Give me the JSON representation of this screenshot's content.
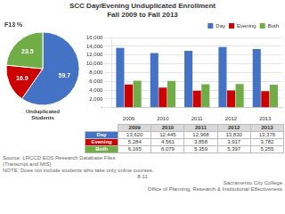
{
  "chart_data": [
    {
      "type": "bar",
      "title": "SCC Day/Evening Unduplicated Enrollment\nFall 2009 to Fall 2013",
      "categories": [
        "2009",
        "2010",
        "2011",
        "2012",
        "2013"
      ],
      "series": [
        {
          "name": "Day",
          "color": "#4472C4",
          "values": [
            13620,
            12445,
            12968,
            13830,
            13376
          ]
        },
        {
          "name": "Evening",
          "color": "#CC0000",
          "values": [
            5284,
            4561,
            3858,
            3917,
            3782
          ]
        },
        {
          "name": "Both",
          "color": "#70AD47",
          "values": [
            6165,
            6079,
            5359,
            5397,
            5255
          ]
        }
      ],
      "ylim": [
        0,
        16000
      ],
      "yticks": [
        {
          "value": 0,
          "label": "-"
        },
        {
          "value": 2000,
          "label": "2,000"
        },
        {
          "value": 4000,
          "label": "4,000"
        },
        {
          "value": 6000,
          "label": "6,000"
        },
        {
          "value": 8000,
          "label": "8,000"
        },
        {
          "value": 10000,
          "label": "10,000"
        },
        {
          "value": 12000,
          "label": "12,000"
        },
        {
          "value": 14000,
          "label": "14,000"
        },
        {
          "value": 16000,
          "label": "16,000"
        }
      ],
      "grid": true,
      "legend": "upper right",
      "annotations": [
        "Source: LRCCD EOS Research Database Files\n(Transcript and MIS)\nNOTE:  Does not include students who take only online courses.",
        "8-11",
        "Sacramento City College\nOffice of Planning, Research & Institutional Effectiveness"
      ]
    },
    {
      "type": "pie",
      "title": "F13 %",
      "values": [
        59.7,
        16.9,
        23.5
      ],
      "colors": [
        "#4472C4",
        "#CC0000",
        "#70AD47"
      ],
      "data_labels": true,
      "annotations": [
        "Unduplicated\nStudents"
      ]
    },
    {
      "type": "table",
      "categories": [
        "2009",
        "2010",
        "2011",
        "2012",
        "2013"
      ],
      "series": [
        {
          "name": "Day",
          "color": "#4472C4",
          "values": [
            13620,
            12445,
            12968,
            13830,
            13376
          ],
          "value_labels": [
            "13,620",
            "12,445",
            "12,968",
            "13,830",
            "13,376"
          ]
        },
        {
          "name": "Evening",
          "color": "#CC0000",
          "values": [
            5284,
            4561,
            3858,
            3917,
            3782
          ],
          "value_labels": [
            "5,284",
            "4,561",
            "3,858",
            "3,917",
            "3,782"
          ]
        },
        {
          "name": "Both",
          "color": "#70AD47",
          "values": [
            6165,
            6079,
            5359,
            5397,
            5255
          ],
          "value_labels": [
            "6,165",
            "6,079",
            "5,359",
            "5,397",
            "5,255"
          ]
        }
      ]
    }
  ]
}
